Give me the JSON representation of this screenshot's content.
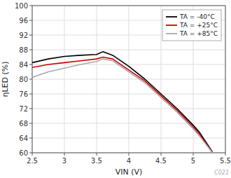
{
  "chart_data": {
    "type": "line",
    "title": "",
    "xlabel": "VIN (V)",
    "ylabel": "ηLED (%)",
    "x": [
      2.5,
      2.75,
      3.0,
      3.25,
      3.5,
      3.6,
      3.75,
      4.0,
      4.25,
      4.5,
      4.75,
      5.0,
      5.1,
      5.3
    ],
    "series": [
      {
        "name": "TA = -40°C",
        "color": "#000000",
        "values": [
          84.5,
          85.5,
          86.2,
          86.5,
          86.7,
          87.5,
          86.5,
          83.5,
          80.0,
          76.0,
          72.0,
          67.5,
          65.5,
          60.2
        ]
      },
      {
        "name": "TA = +25°C",
        "color": "#cc0000",
        "values": [
          83.2,
          84.0,
          84.5,
          85.0,
          85.5,
          86.0,
          85.5,
          82.5,
          79.5,
          75.5,
          71.5,
          67.0,
          65.0,
          60.0
        ]
      },
      {
        "name": "TA = +85°C",
        "color": "#aaaaaa",
        "values": [
          80.5,
          82.0,
          83.0,
          84.0,
          84.8,
          85.5,
          85.0,
          82.0,
          79.0,
          75.0,
          71.0,
          66.5,
          64.5,
          60.0
        ]
      }
    ],
    "xlim": [
      2.5,
      5.5
    ],
    "ylim": [
      60,
      100
    ],
    "xticks": [
      2.5,
      3,
      3.5,
      4,
      4.5,
      5,
      5.5
    ],
    "yticks": [
      60,
      64,
      68,
      72,
      76,
      80,
      84,
      88,
      92,
      96,
      100
    ],
    "grid": true,
    "legend": "upper right",
    "annotations": [
      "C021"
    ]
  }
}
